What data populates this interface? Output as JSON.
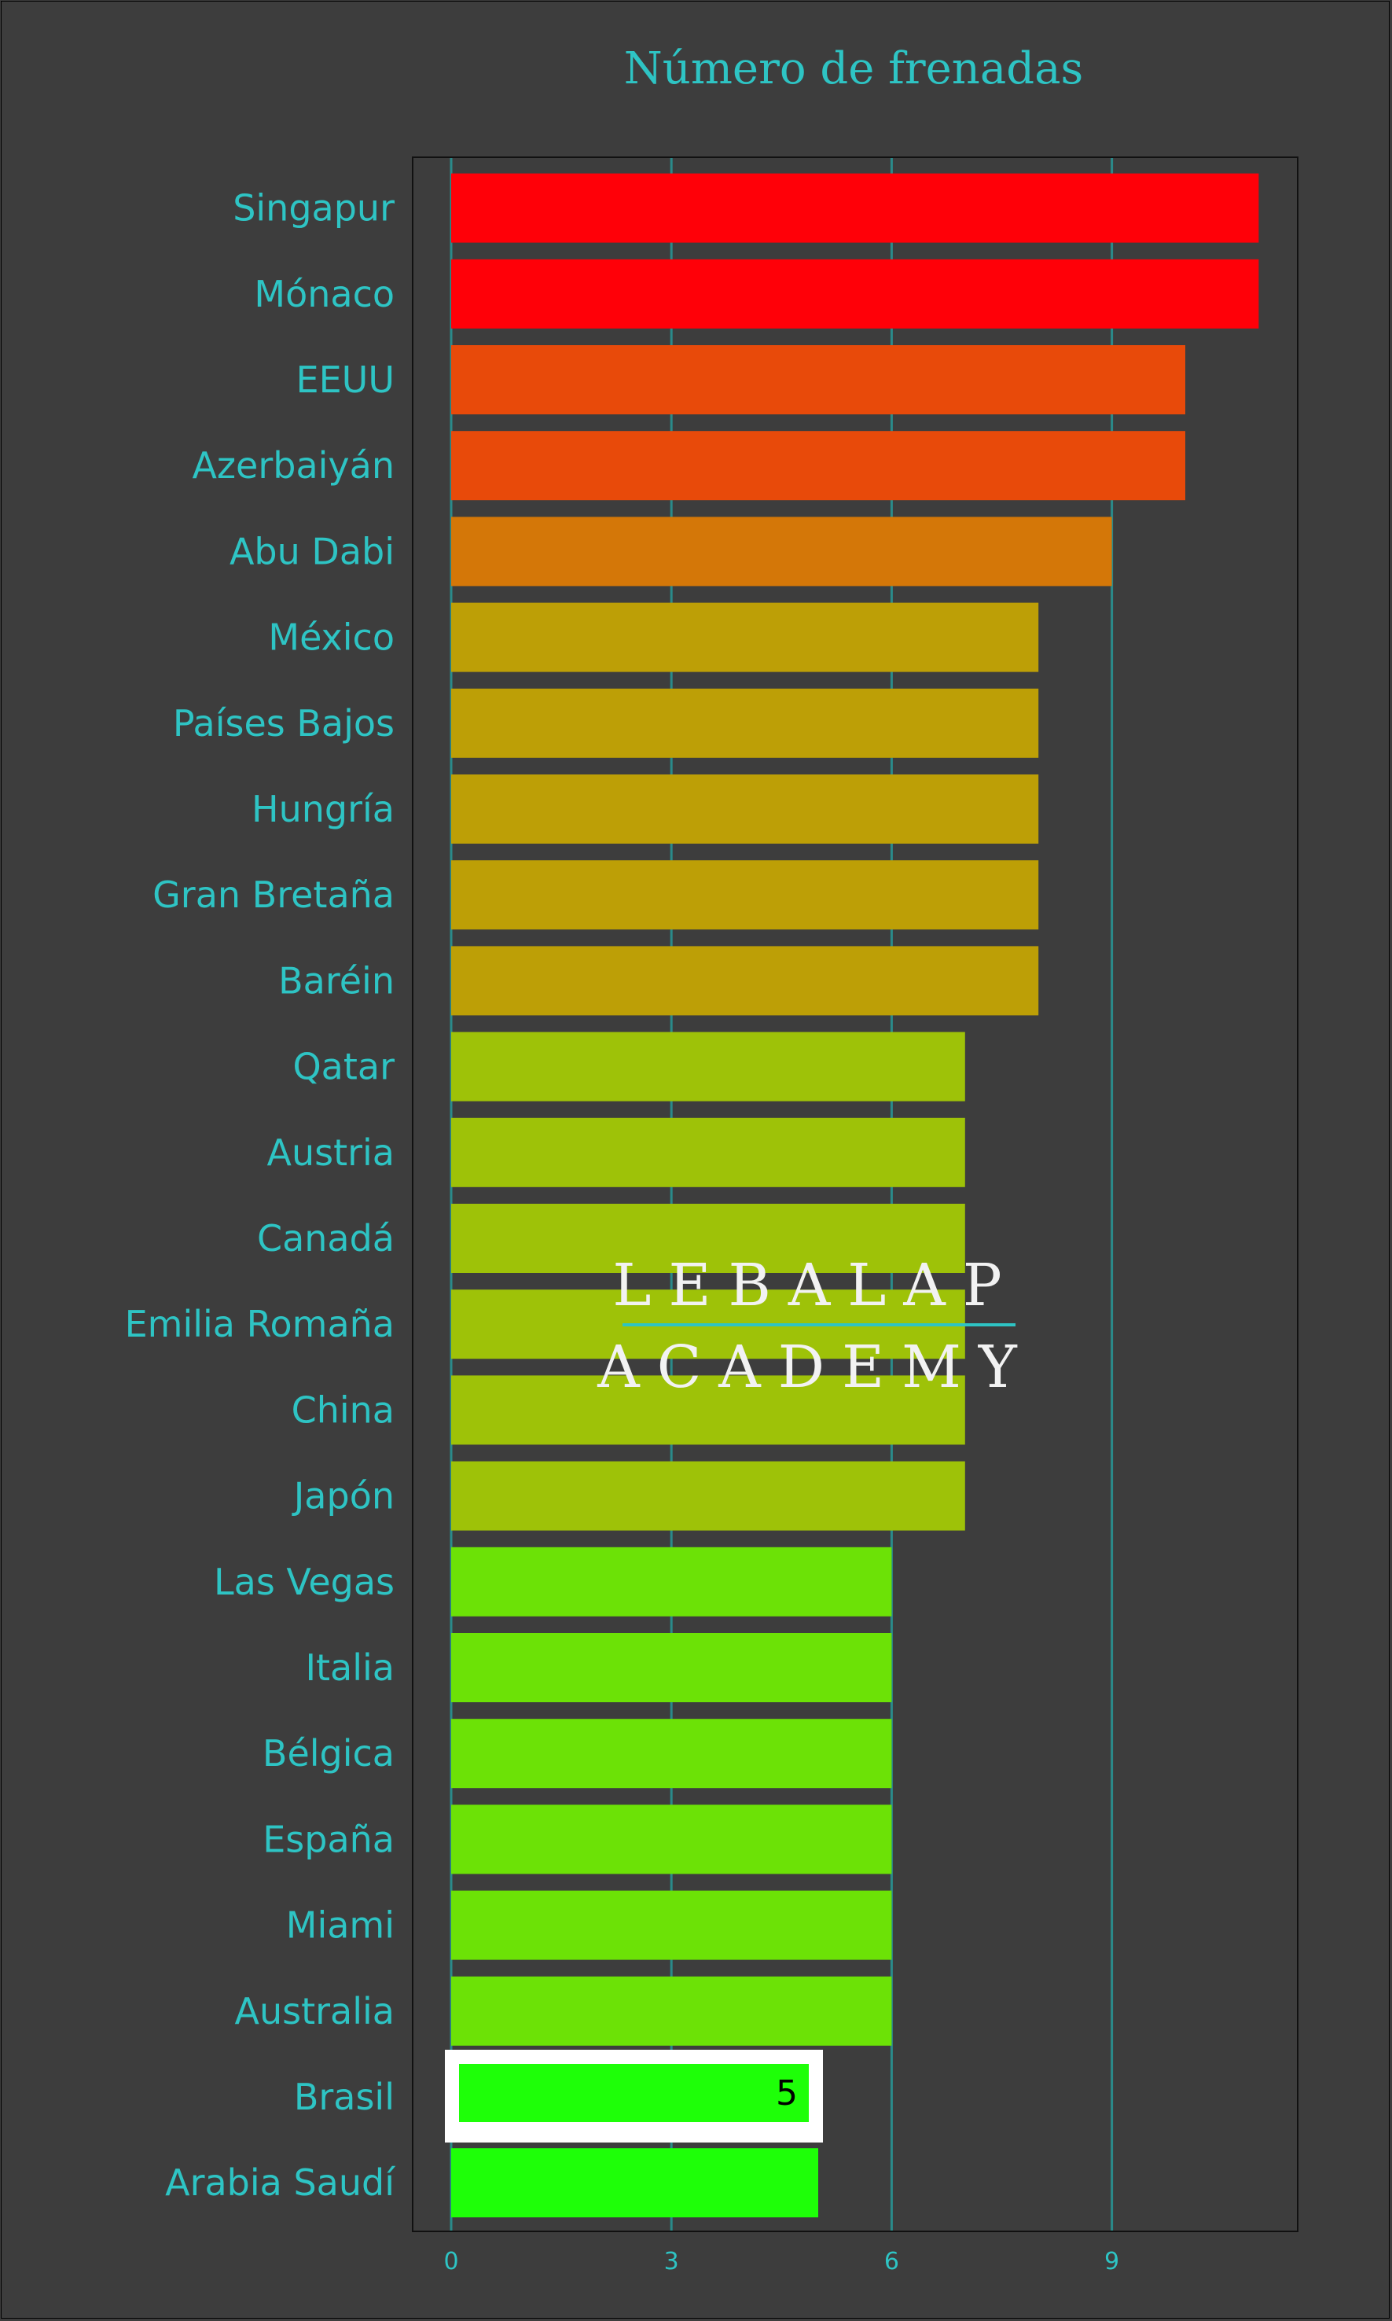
{
  "chart_data": {
    "type": "bar",
    "orientation": "horizontal",
    "title": "Número de frenadas",
    "xlabel": "",
    "ylabel": "",
    "xlim": [
      -0.55,
      11.5
    ],
    "ticks": [
      0,
      3,
      6,
      9
    ],
    "grid": "vertical",
    "legend": "none",
    "categories": [
      "Singapur",
      "Mónaco",
      "EEUU",
      "Azerbaiyán",
      "Abu Dabi",
      "México",
      "Países Bajos",
      "Hungría",
      "Gran Bretaña",
      "Baréin",
      "Qatar",
      "Austria",
      "Canadá",
      "Emilia Romaña",
      "China",
      "Japón",
      "Las Vegas",
      "Italia",
      "Bélgica",
      "España",
      "Miami",
      "Australia",
      "Brasil",
      "Arabia Saudí"
    ],
    "values": [
      11,
      11,
      10,
      10,
      9,
      8,
      8,
      8,
      8,
      8,
      7,
      7,
      7,
      7,
      7,
      7,
      6,
      6,
      6,
      6,
      6,
      6,
      5,
      5
    ],
    "color_by_value": {
      "11": "#ff0008",
      "10": "#e84a0a",
      "9": "#d47708",
      "8": "#bd9f06",
      "7": "#9ec208",
      "6": "#6ce206",
      "5": "#1eff08"
    },
    "highlight": {
      "category": "Brasil",
      "value_label": "5",
      "frame_color": "#ffffff",
      "label_color": "#000000"
    }
  },
  "watermark": {
    "line1": "LEBALAP",
    "line2": "ACADEMY",
    "text_color": "#f2f2f2",
    "rule_color": "#2ec4c4"
  },
  "colors": {
    "background": "#3d3d3d",
    "text": "#2ec4c4",
    "grid": "#2a8a8a",
    "plot_border": "#111111"
  }
}
